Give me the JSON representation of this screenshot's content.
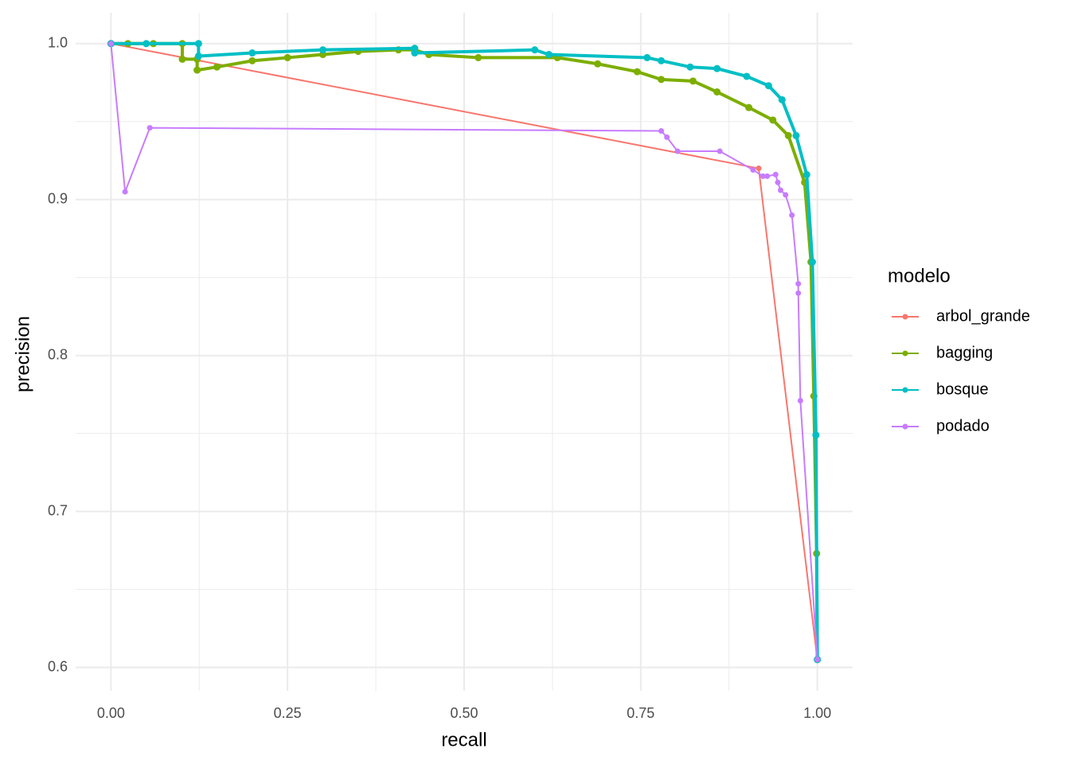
{
  "chart_data": {
    "type": "line",
    "x_label": "recall",
    "y_label": "precision",
    "xlim": [
      -0.05,
      1.05
    ],
    "ylim": [
      0.585,
      1.0198
    ],
    "xticks": [
      {
        "value": 0,
        "label": "0.00"
      },
      {
        "value": 0.25,
        "label": "0.25"
      },
      {
        "value": 0.5,
        "label": "0.50"
      },
      {
        "value": 0.75,
        "label": "0.75"
      },
      {
        "value": 1,
        "label": "1.00"
      }
    ],
    "yticks": [
      0.6,
      0.7,
      0.8,
      0.9,
      {
        "value": 1,
        "label": "1.0"
      }
    ],
    "grid": true,
    "legend_title": "modelo",
    "legend_position": "right",
    "series": [
      {
        "name": "arbol_grande",
        "color": "#F8766D",
        "x": [
          0,
          0.917,
          1.0
        ],
        "values": [
          1.0,
          0.92,
          0.605
        ]
      },
      {
        "name": "bagging",
        "color": "#7CAE00",
        "x": [
          0,
          0.024,
          0.06,
          0.101,
          0.101,
          0.122,
          0.122,
          0.15,
          0.2,
          0.25,
          0.3,
          0.35,
          0.407,
          0.43,
          0.45,
          0.52,
          0.632,
          0.689,
          0.745,
          0.779,
          0.824,
          0.858,
          0.903,
          0.937,
          0.959,
          0.982,
          0.991,
          0.995,
          0.999,
          1.0
        ],
        "values": [
          1.0,
          1.0,
          1.0,
          1.0,
          0.99,
          0.99,
          0.983,
          0.985,
          0.989,
          0.991,
          0.993,
          0.995,
          0.996,
          0.996,
          0.993,
          0.991,
          0.991,
          0.987,
          0.982,
          0.977,
          0.976,
          0.969,
          0.959,
          0.951,
          0.941,
          0.911,
          0.86,
          0.774,
          0.673,
          0.605
        ]
      },
      {
        "name": "bosque",
        "color": "#00BFC4",
        "x": [
          0,
          0.05,
          0.124,
          0.124,
          0.2,
          0.3,
          0.43,
          0.43,
          0.6,
          0.62,
          0.759,
          0.779,
          0.82,
          0.858,
          0.9,
          0.931,
          0.95,
          0.97,
          0.985,
          0.993,
          0.998,
          1.0
        ],
        "values": [
          1.0,
          1.0,
          1.0,
          0.992,
          0.994,
          0.996,
          0.997,
          0.994,
          0.996,
          0.993,
          0.991,
          0.989,
          0.985,
          0.984,
          0.979,
          0.973,
          0.964,
          0.941,
          0.916,
          0.86,
          0.749,
          0.605
        ]
      },
      {
        "name": "podado",
        "color": "#C77CFF",
        "x": [
          0,
          0.02,
          0.055,
          0.779,
          0.787,
          0.802,
          0.862,
          0.909,
          0.923,
          0.929,
          0.941,
          0.944,
          0.948,
          0.955,
          0.964,
          0.973,
          0.973,
          0.976,
          1.0
        ],
        "values": [
          1.0,
          0.905,
          0.946,
          0.944,
          0.94,
          0.931,
          0.931,
          0.919,
          0.915,
          0.915,
          0.916,
          0.911,
          0.906,
          0.903,
          0.89,
          0.846,
          0.84,
          0.771,
          0.605
        ]
      }
    ]
  }
}
